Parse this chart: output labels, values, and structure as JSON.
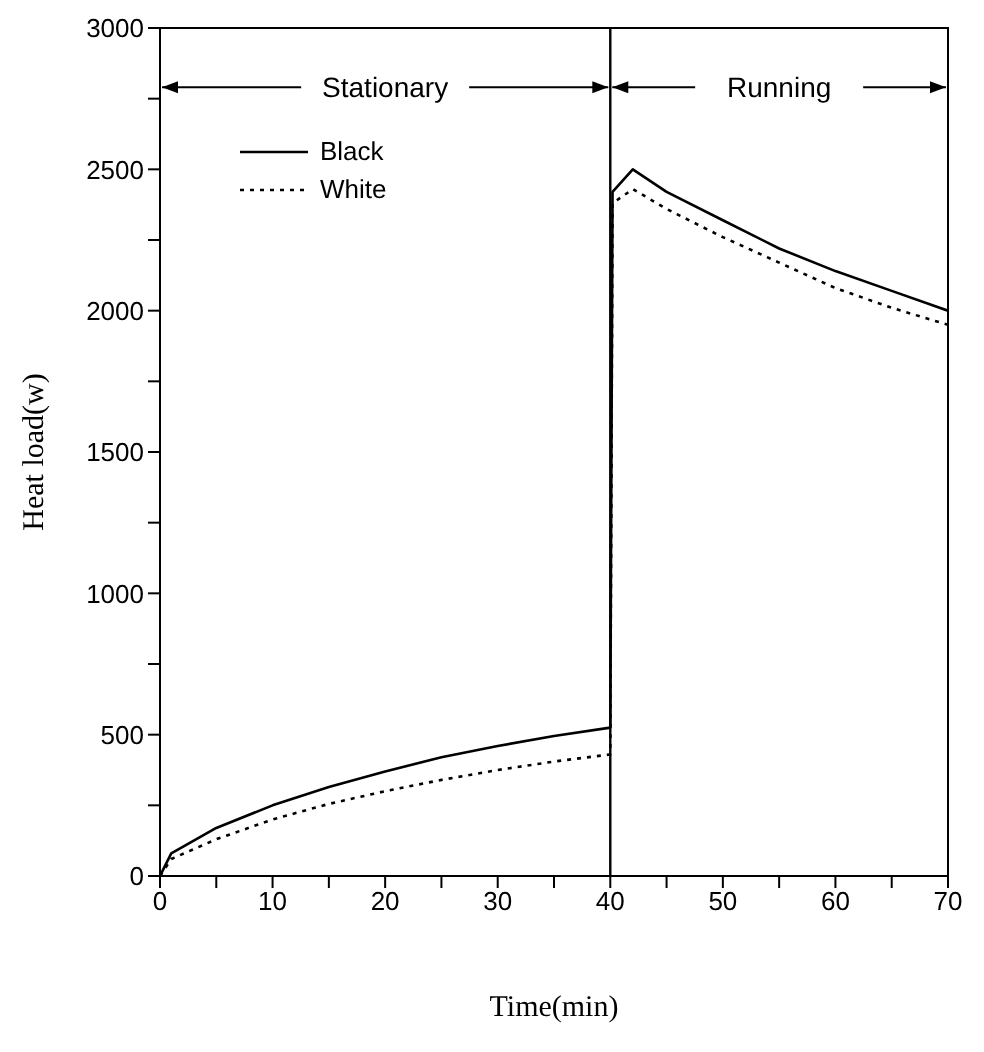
{
  "chart_data": {
    "type": "line",
    "xlabel": "Time(min)",
    "ylabel": "Heat load(w)",
    "xlim": [
      0,
      70
    ],
    "xticks": [
      0,
      {
        "value": 5,
        "label": null
      },
      10,
      {
        "value": 15,
        "label": null
      },
      20,
      {
        "value": 25,
        "label": null
      },
      30,
      {
        "value": 35,
        "label": null
      },
      40,
      {
        "value": 45,
        "label": null
      },
      50,
      {
        "value": 55,
        "label": null
      },
      60,
      {
        "value": 65,
        "label": null
      },
      70
    ],
    "ylim": [
      0,
      3000
    ],
    "yticks": [
      0,
      {
        "value": 250,
        "label": null
      },
      500,
      {
        "value": 750,
        "label": null
      },
      1000,
      {
        "value": 1250,
        "label": null
      },
      1500,
      {
        "value": 1750,
        "label": null
      },
      2000,
      {
        "value": 2250,
        "label": null
      },
      2500,
      {
        "value": 2750,
        "label": null
      },
      3000
    ],
    "legend": "top left",
    "grid": false,
    "ref_lines": [
      {
        "axis": "x",
        "value": 40,
        "color": "#000000"
      }
    ],
    "annotations": [
      "Stationary",
      "Running"
    ],
    "series": [
      {
        "name": "Black",
        "color": "#000000",
        "line_style": "solid",
        "x": [
          0,
          1,
          5,
          10,
          15,
          20,
          25,
          30,
          35,
          40,
          40.2,
          42,
          45,
          50,
          55,
          60,
          65,
          70
        ],
        "values": [
          0,
          80,
          170,
          250,
          315,
          370,
          420,
          460,
          495,
          525,
          2420,
          2500,
          2420,
          2320,
          2220,
          2140,
          2070,
          2000
        ]
      },
      {
        "name": "White",
        "color": "#000000",
        "line_style": "dotted",
        "x": [
          0,
          1,
          5,
          10,
          15,
          20,
          25,
          30,
          35,
          40,
          40.2,
          42,
          45,
          50,
          55,
          60,
          65,
          70
        ],
        "values": [
          0,
          60,
          130,
          200,
          255,
          300,
          340,
          375,
          405,
          430,
          2380,
          2430,
          2360,
          2260,
          2170,
          2080,
          2010,
          1950
        ]
      }
    ]
  }
}
